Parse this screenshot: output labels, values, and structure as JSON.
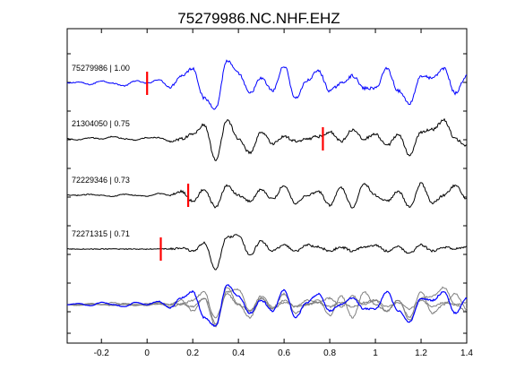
{
  "chart_data": {
    "type": "line",
    "title": "75279986.NC.NHF.EHZ",
    "xlabel": "",
    "ylabel": "",
    "xlim": [
      -0.35,
      1.4
    ],
    "xticks": [
      -0.2,
      0,
      0.2,
      0.4,
      0.6,
      0.8,
      1,
      1.2,
      1.4
    ],
    "xtick_labels": [
      "-0.2",
      "0",
      "0.2",
      "0.4",
      "0.6",
      "0.8",
      "1",
      "1.2",
      "1.4"
    ],
    "grid": false,
    "legend": "none",
    "colors": {
      "primary_trace": "#0000ff",
      "secondary_trace": "#000000",
      "overlay_gray": "#808080",
      "pick_marker": "#ff0000",
      "axes": "#000000"
    },
    "series": [
      {
        "label": "75279986 | 1.00",
        "event_id": "75279986",
        "correlation": 1.0,
        "pick_time": 0.0,
        "color": "#0000ff"
      },
      {
        "label": "21304050 | 0.75",
        "event_id": "21304050",
        "correlation": 0.75,
        "pick_time": 0.77,
        "color": "#000000"
      },
      {
        "label": "72229346 | 0.73",
        "event_id": "72229346",
        "correlation": 0.73,
        "pick_time": 0.18,
        "color": "#000000"
      },
      {
        "label": "72271315 | 0.71",
        "event_id": "72271315",
        "correlation": 0.71,
        "pick_time": 0.06,
        "color": "#000000"
      }
    ],
    "waveform_anchors_x": [
      -0.35,
      -0.3,
      -0.25,
      -0.2,
      -0.15,
      -0.1,
      -0.05,
      0.0,
      0.05,
      0.1,
      0.15,
      0.2,
      0.25,
      0.3,
      0.35,
      0.4,
      0.45,
      0.5,
      0.55,
      0.6,
      0.65,
      0.7,
      0.75,
      0.8,
      0.85,
      0.9,
      0.95,
      1.0,
      1.05,
      1.1,
      1.15,
      1.2,
      1.25,
      1.3,
      1.35,
      1.4
    ],
    "waveforms": {
      "75279986": [
        0,
        0.05,
        -0.05,
        0.1,
        0,
        -0.1,
        0.1,
        0,
        0.15,
        -0.15,
        0.3,
        0.6,
        -0.6,
        -1.0,
        0.9,
        0.4,
        -0.4,
        0.2,
        -0.3,
        0.7,
        -0.6,
        0.1,
        0.5,
        -0.3,
        0.0,
        0.3,
        -0.2,
        -0.2,
        0.6,
        -0.3,
        -0.8,
        0.3,
        0.2,
        0.6,
        -0.4,
        0.3
      ],
      "21304050": [
        0,
        -0.05,
        0.05,
        0.0,
        0.1,
        0.0,
        -0.05,
        0.05,
        0.05,
        -0.1,
        0.0,
        0.2,
        0.6,
        -0.9,
        0.8,
        0.0,
        -0.6,
        0.3,
        -0.2,
        0.1,
        -0.1,
        0.0,
        0.1,
        0.3,
        -0.1,
        0.4,
        0.0,
        0.2,
        -0.3,
        0.2,
        -0.7,
        0.3,
        0.4,
        0.8,
        0.0,
        -0.3
      ],
      "72229346": [
        0,
        0.0,
        0.05,
        0.0,
        -0.05,
        0.05,
        0.0,
        -0.05,
        0.1,
        0.0,
        0.2,
        -0.3,
        0.3,
        -0.6,
        0.5,
        0.0,
        -0.3,
        0.3,
        -0.2,
        0.5,
        -0.4,
        0.0,
        0.2,
        -0.5,
        0.4,
        -0.6,
        0.6,
        0.0,
        -0.3,
        0.2,
        -0.6,
        0.6,
        -0.4,
        0.0,
        0.5,
        -0.2
      ],
      "72271315": [
        0,
        0.0,
        0.0,
        0.0,
        0.0,
        0.0,
        0.0,
        0.0,
        0.02,
        0.0,
        0.05,
        -0.1,
        0.3,
        -1.0,
        0.6,
        0.7,
        -0.3,
        0.4,
        -0.1,
        0.2,
        -0.1,
        0.2,
        0.1,
        -0.1,
        0.1,
        -0.1,
        0.1,
        0.2,
        -0.1,
        0.1,
        -0.2,
        0.2,
        -0.1,
        0.1,
        0.0,
        0.1
      ]
    }
  }
}
